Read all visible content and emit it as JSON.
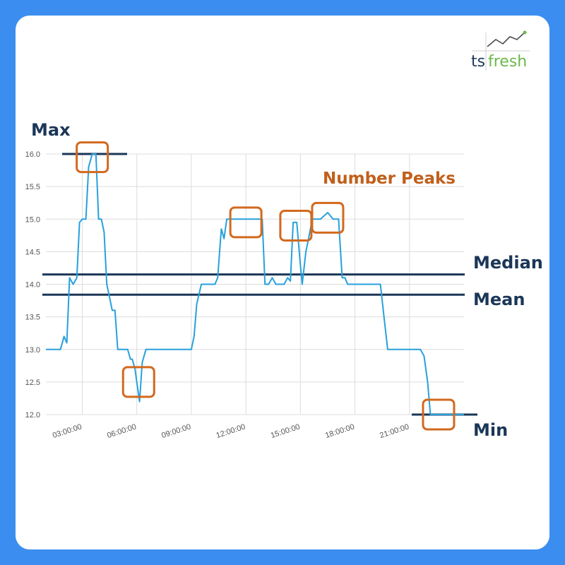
{
  "logo": {
    "ts": "ts",
    "fresh": "fresh"
  },
  "chart_data": {
    "type": "line",
    "x_ticks": [
      "03:00:00",
      "06:00:00",
      "09:00:00",
      "12:00:00",
      "15:00:00",
      "18:00:00",
      "21:00:00"
    ],
    "y_ticks": [
      "16.0",
      "15.5",
      "15.0",
      "14.5",
      "14.0",
      "13.5",
      "13.0",
      "12.5",
      "12.0"
    ],
    "ylim": [
      12.0,
      16.0
    ],
    "xlim_hours": [
      1.0,
      24.0
    ],
    "grid": true,
    "series_color": "#27a0dc",
    "points": [
      [
        1.0,
        13.0
      ],
      [
        1.8,
        13.0
      ],
      [
        2.0,
        13.2
      ],
      [
        2.15,
        13.1
      ],
      [
        2.3,
        14.1
      ],
      [
        2.5,
        14.0
      ],
      [
        2.7,
        14.1
      ],
      [
        2.85,
        14.95
      ],
      [
        3.0,
        15.0
      ],
      [
        3.2,
        15.0
      ],
      [
        3.35,
        15.8
      ],
      [
        3.55,
        16.0
      ],
      [
        3.75,
        16.0
      ],
      [
        3.9,
        15.0
      ],
      [
        4.05,
        15.0
      ],
      [
        4.2,
        14.8
      ],
      [
        4.35,
        14.0
      ],
      [
        4.5,
        13.8
      ],
      [
        4.65,
        13.6
      ],
      [
        4.8,
        13.6
      ],
      [
        4.95,
        13.0
      ],
      [
        5.5,
        13.0
      ],
      [
        5.65,
        12.85
      ],
      [
        5.75,
        12.85
      ],
      [
        5.9,
        12.7
      ],
      [
        6.0,
        12.5
      ],
      [
        6.15,
        12.2
      ],
      [
        6.3,
        12.8
      ],
      [
        6.5,
        13.0
      ],
      [
        9.0,
        13.0
      ],
      [
        9.15,
        13.2
      ],
      [
        9.3,
        13.7
      ],
      [
        9.55,
        14.0
      ],
      [
        10.3,
        14.0
      ],
      [
        10.45,
        14.1
      ],
      [
        10.65,
        14.85
      ],
      [
        10.8,
        14.7
      ],
      [
        10.95,
        15.0
      ],
      [
        12.9,
        15.0
      ],
      [
        13.05,
        14.0
      ],
      [
        13.25,
        14.0
      ],
      [
        13.45,
        14.1
      ],
      [
        13.65,
        14.0
      ],
      [
        14.1,
        14.0
      ],
      [
        14.3,
        14.1
      ],
      [
        14.45,
        14.05
      ],
      [
        14.6,
        14.95
      ],
      [
        14.8,
        14.95
      ],
      [
        15.0,
        14.3
      ],
      [
        15.1,
        14.0
      ],
      [
        15.3,
        14.5
      ],
      [
        15.45,
        14.7
      ],
      [
        15.65,
        15.0
      ],
      [
        16.1,
        15.0
      ],
      [
        16.5,
        15.1
      ],
      [
        16.8,
        15.0
      ],
      [
        17.1,
        15.0
      ],
      [
        17.3,
        14.1
      ],
      [
        17.45,
        14.1
      ],
      [
        17.6,
        14.0
      ],
      [
        18.8,
        14.0
      ],
      [
        19.4,
        14.0
      ],
      [
        19.6,
        13.5
      ],
      [
        19.8,
        13.0
      ],
      [
        21.6,
        13.0
      ],
      [
        21.8,
        12.9
      ],
      [
        22.0,
        12.5
      ],
      [
        22.15,
        12.0
      ],
      [
        24.0,
        12.0
      ]
    ],
    "stats": {
      "max": 16.0,
      "median": 14.15,
      "mean": 13.84,
      "min": 12.0
    },
    "peak_boxes": [
      {
        "x": 3.55,
        "y": 15.95
      },
      {
        "x": 6.1,
        "y": 12.5
      },
      {
        "x": 12.0,
        "y": 14.95
      },
      {
        "x": 14.75,
        "y": 14.9
      },
      {
        "x": 16.5,
        "y": 15.02
      },
      {
        "x": 22.6,
        "y": 12.0
      }
    ],
    "annotations": {
      "max_label": "Max",
      "median_label": "Median",
      "mean_label": "Mean",
      "min_label": "Min",
      "peaks_label": "Number Peaks"
    },
    "colors": {
      "stat_line": "#1b3657",
      "peak_box": "#d2691e",
      "peaks_text": "#c0601c",
      "grid": "#dcdcdc"
    }
  }
}
